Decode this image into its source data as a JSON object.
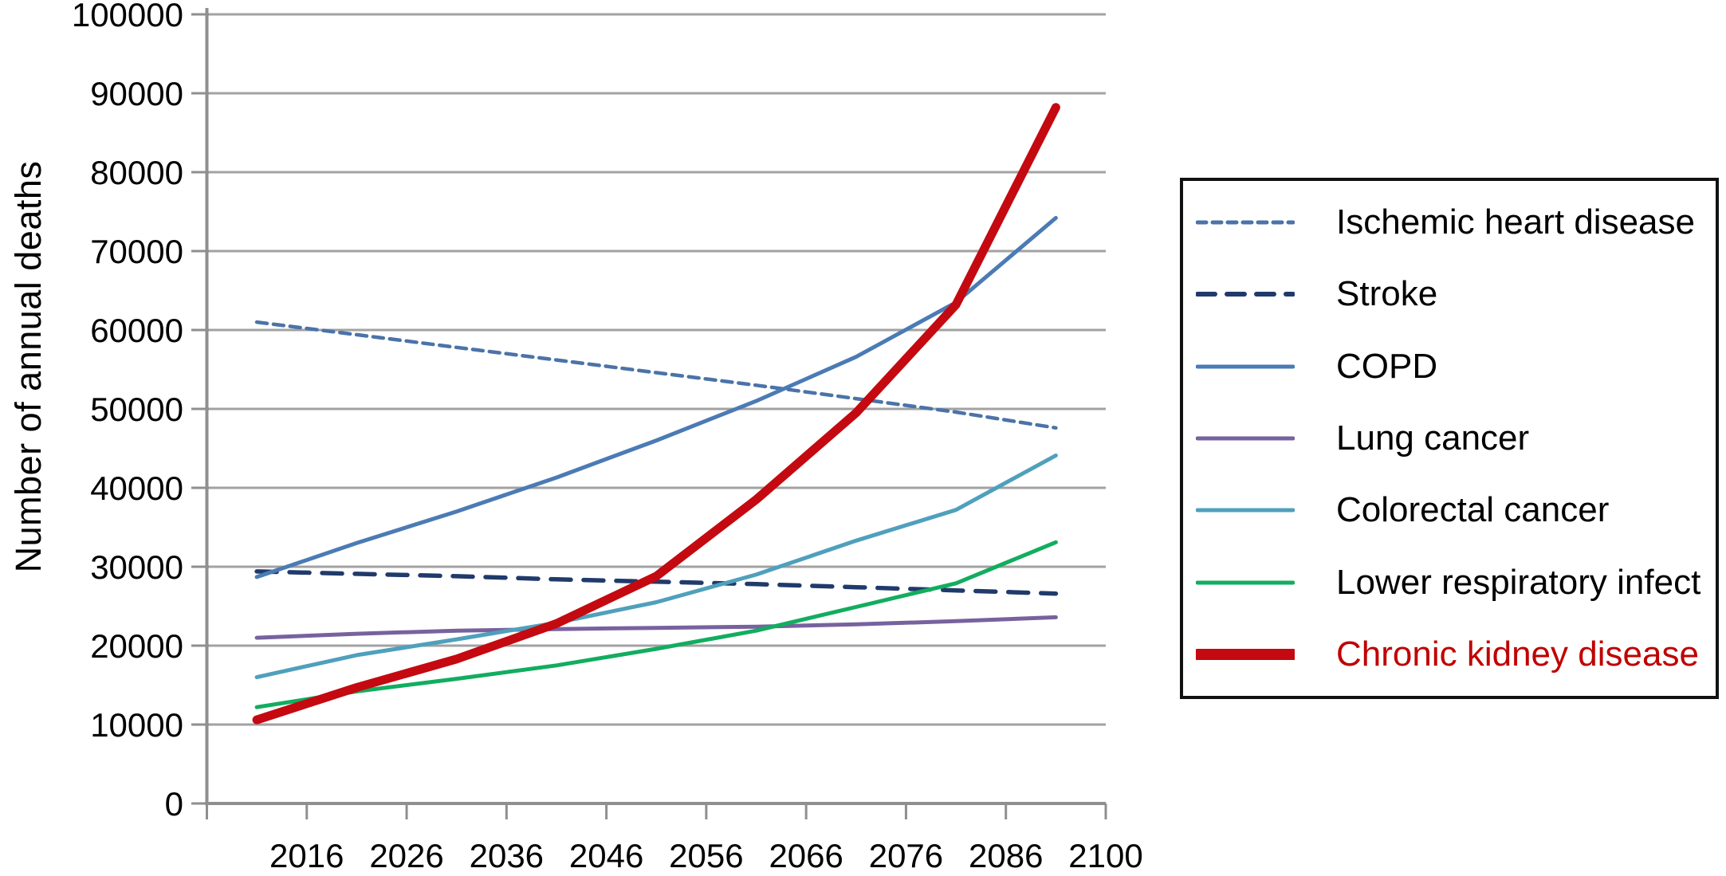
{
  "chart_data": {
    "type": "line",
    "title": "",
    "ylabel": "Number of annual deaths",
    "xlabel": "",
    "ylim": [
      0,
      100000
    ],
    "ytick_step": 10000,
    "ytick_labels": [
      "100000",
      "90000",
      "80000",
      "70000",
      "60000",
      "50000",
      "40000",
      "30000",
      "20000",
      "10000",
      "0"
    ],
    "xtick_labels": [
      "2016",
      "2026",
      "2036",
      "2046",
      "2056",
      "2066",
      "2076",
      "2086",
      "2100"
    ],
    "x": [
      2011,
      2021,
      2031,
      2041,
      2051,
      2061,
      2071,
      2081,
      2091
    ],
    "grid": "horizontal",
    "legend_position": "right",
    "background": "#FFFFFF",
    "grid_color": "#A2A2A2",
    "axis_color": "#8F8F8F",
    "tick_label_color": "#000000",
    "series": [
      {
        "name": "Ischemic heart disease",
        "color": "#4B73A8",
        "label_color": "#000000",
        "line_style": "short-dash",
        "weight": "normal",
        "values": [
          61000,
          59400,
          57800,
          56200,
          54600,
          53000,
          51300,
          49600,
          47600
        ]
      },
      {
        "name": "Stroke",
        "color": "#203A6B",
        "label_color": "#000000",
        "line_style": "long-dash",
        "weight": "normal",
        "values": [
          29400,
          29100,
          28800,
          28400,
          28100,
          27800,
          27400,
          27000,
          26600
        ]
      },
      {
        "name": "COPD",
        "color": "#4B7BB5",
        "label_color": "#000000",
        "line_style": "solid",
        "weight": "normal",
        "values": [
          28700,
          33000,
          37000,
          41300,
          46000,
          51000,
          56600,
          63500,
          74200
        ]
      },
      {
        "name": "Lung cancer",
        "color": "#77629E",
        "label_color": "#000000",
        "line_style": "solid",
        "weight": "normal",
        "values": [
          21000,
          21500,
          21900,
          22100,
          22250,
          22400,
          22700,
          23100,
          23600
        ]
      },
      {
        "name": "Colorectal cancer",
        "color": "#4FA0BC",
        "label_color": "#000000",
        "line_style": "solid",
        "weight": "normal",
        "values": [
          16000,
          18800,
          20800,
          22900,
          25500,
          29000,
          33300,
          37200,
          44100
        ]
      },
      {
        "name": "Lower respiratory infect",
        "color": "#12AD5F",
        "label_color": "#000000",
        "line_style": "solid",
        "weight": "normal",
        "values": [
          12200,
          14200,
          15800,
          17500,
          19600,
          21900,
          24900,
          27900,
          33100
        ]
      },
      {
        "name": "Chronic kidney disease",
        "color": "#C40910",
        "label_color": "#C00000",
        "line_style": "solid",
        "weight": "thick",
        "values": [
          10600,
          14700,
          18300,
          22800,
          28800,
          38500,
          49500,
          63200,
          88200
        ]
      }
    ]
  }
}
